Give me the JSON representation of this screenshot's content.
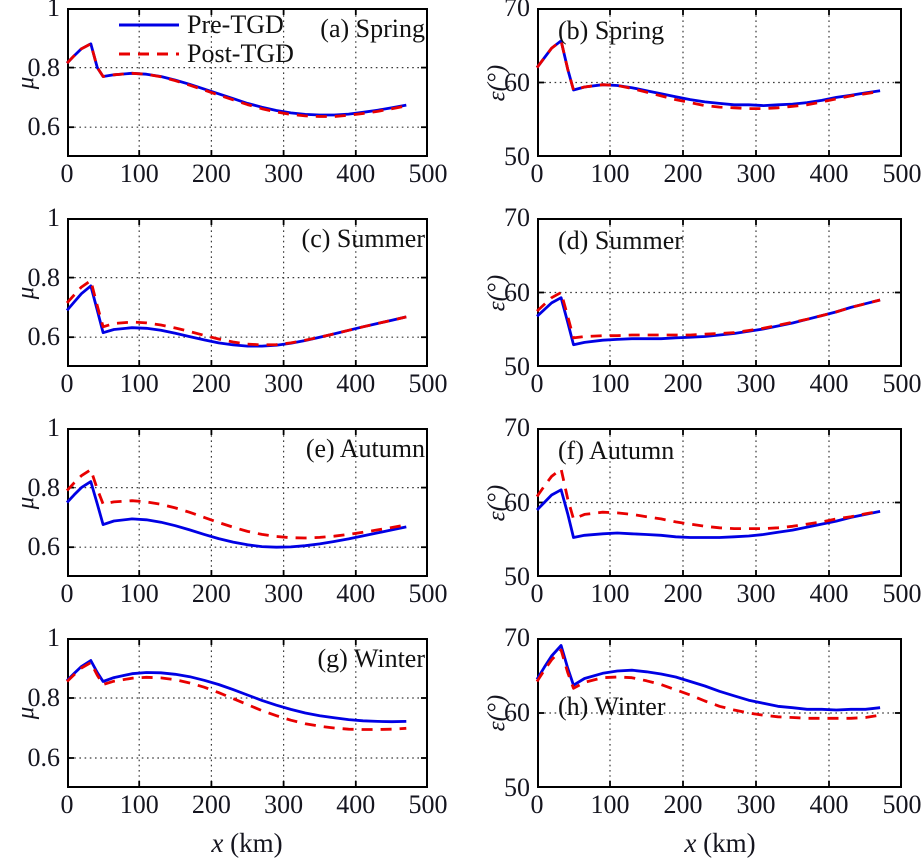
{
  "figure": {
    "xlabel_var": "x",
    "xlabel_rest": " (km)",
    "x_ticks": [
      0,
      100,
      200,
      300,
      400,
      500
    ],
    "xlim": [
      0,
      500
    ],
    "legend": [
      {
        "label": "Pre-TGD",
        "color": "#0000e4",
        "style": "solid"
      },
      {
        "label": "Post-TGD",
        "color": "#e80000",
        "style": "dashed"
      }
    ],
    "colors": {
      "pre_tgd": "#0000e4",
      "post_tgd": "#e80000",
      "axis": "#000000",
      "grid": "#3a3a3a",
      "text": "#15151f",
      "background": "#ffffff"
    }
  },
  "chart_data": [
    {
      "type": "line",
      "id": "a",
      "label": "(a) Spring",
      "label_pos": "top-right",
      "ylabel": "μ",
      "ylim": [
        0.5,
        1.0
      ],
      "yticks": [
        {
          "v": 1,
          "t": "1"
        },
        {
          "v": 0.8,
          "t": "0.8"
        },
        {
          "v": 0.6,
          "t": "0.6"
        }
      ],
      "x": [
        0,
        10,
        20,
        33,
        42,
        50,
        65,
        90,
        110,
        130,
        150,
        170,
        190,
        210,
        230,
        250,
        270,
        290,
        310,
        330,
        350,
        370,
        390,
        410,
        430,
        450,
        470
      ],
      "series": [
        {
          "name": "Pre-TGD",
          "y": [
            0.815,
            0.84,
            0.863,
            0.88,
            0.8,
            0.77,
            0.776,
            0.781,
            0.778,
            0.77,
            0.758,
            0.744,
            0.728,
            0.712,
            0.696,
            0.68,
            0.667,
            0.656,
            0.648,
            0.643,
            0.641,
            0.641,
            0.644,
            0.65,
            0.657,
            0.665,
            0.674
          ]
        },
        {
          "name": "Post-TGD",
          "y": [
            0.815,
            0.84,
            0.863,
            0.88,
            0.8,
            0.77,
            0.776,
            0.781,
            0.778,
            0.769,
            0.756,
            0.741,
            0.725,
            0.708,
            0.692,
            0.676,
            0.662,
            0.651,
            0.643,
            0.638,
            0.636,
            0.636,
            0.64,
            0.646,
            0.653,
            0.662,
            0.671
          ]
        }
      ]
    },
    {
      "type": "line",
      "id": "b",
      "label": "(b) Spring",
      "label_pos": "top-left",
      "ylabel": "ε(°)",
      "ylim": [
        50,
        70
      ],
      "yticks": [
        {
          "v": 70,
          "t": "70"
        },
        {
          "v": 60,
          "t": "60"
        },
        {
          "v": 50,
          "t": "50"
        }
      ],
      "x": [
        0,
        10,
        20,
        33,
        42,
        50,
        65,
        90,
        110,
        130,
        150,
        170,
        190,
        210,
        230,
        250,
        270,
        290,
        310,
        330,
        350,
        370,
        390,
        410,
        430,
        450,
        470
      ],
      "series": [
        {
          "name": "Pre-TGD",
          "y": [
            62.0,
            63.3,
            64.6,
            65.6,
            61.8,
            59.0,
            59.4,
            59.7,
            59.6,
            59.3,
            58.9,
            58.5,
            58.1,
            57.7,
            57.4,
            57.2,
            57.0,
            57.0,
            56.9,
            57.0,
            57.1,
            57.3,
            57.6,
            58.0,
            58.3,
            58.6,
            58.9
          ]
        },
        {
          "name": "Post-TGD",
          "y": [
            62.0,
            63.3,
            64.6,
            65.6,
            61.8,
            59.0,
            59.4,
            59.7,
            59.6,
            59.2,
            58.7,
            58.2,
            57.7,
            57.3,
            56.9,
            56.7,
            56.6,
            56.5,
            56.5,
            56.6,
            56.8,
            57.0,
            57.4,
            57.8,
            58.2,
            58.5,
            58.8
          ]
        }
      ]
    },
    {
      "type": "line",
      "id": "c",
      "label": "(c) Summer",
      "label_pos": "top-right",
      "ylabel": "μ",
      "ylim": [
        0.5,
        1.0
      ],
      "yticks": [
        {
          "v": 1,
          "t": "1"
        },
        {
          "v": 0.8,
          "t": "0.8"
        },
        {
          "v": 0.6,
          "t": "0.6"
        }
      ],
      "x": [
        0,
        10,
        20,
        33,
        42,
        50,
        65,
        90,
        110,
        130,
        150,
        170,
        190,
        210,
        230,
        250,
        270,
        290,
        310,
        330,
        350,
        370,
        390,
        410,
        430,
        450,
        470
      ],
      "series": [
        {
          "name": "Pre-TGD",
          "y": [
            0.69,
            0.718,
            0.746,
            0.772,
            0.69,
            0.615,
            0.626,
            0.632,
            0.63,
            0.623,
            0.613,
            0.602,
            0.591,
            0.581,
            0.574,
            0.57,
            0.57,
            0.573,
            0.58,
            0.589,
            0.6,
            0.611,
            0.623,
            0.635,
            0.646,
            0.657,
            0.668
          ]
        },
        {
          "name": "Post-TGD",
          "y": [
            0.715,
            0.742,
            0.768,
            0.79,
            0.705,
            0.635,
            0.646,
            0.651,
            0.648,
            0.641,
            0.631,
            0.619,
            0.606,
            0.594,
            0.584,
            0.577,
            0.574,
            0.575,
            0.581,
            0.59,
            0.6,
            0.611,
            0.623,
            0.635,
            0.646,
            0.657,
            0.668
          ]
        }
      ]
    },
    {
      "type": "line",
      "id": "d",
      "label": "(d) Summer",
      "label_pos": "top-left",
      "ylabel": "ε(°)",
      "ylim": [
        50,
        70
      ],
      "yticks": [
        {
          "v": 70,
          "t": "70"
        },
        {
          "v": 60,
          "t": "60"
        },
        {
          "v": 50,
          "t": "50"
        }
      ],
      "x": [
        0,
        10,
        20,
        33,
        42,
        50,
        65,
        90,
        110,
        130,
        150,
        170,
        190,
        210,
        230,
        250,
        270,
        290,
        310,
        330,
        350,
        370,
        390,
        410,
        430,
        450,
        470
      ],
      "series": [
        {
          "name": "Pre-TGD",
          "y": [
            56.8,
            57.7,
            58.6,
            59.3,
            56.0,
            53.0,
            53.3,
            53.6,
            53.7,
            53.8,
            53.8,
            53.8,
            53.9,
            54.0,
            54.1,
            54.3,
            54.5,
            54.8,
            55.1,
            55.5,
            55.9,
            56.4,
            56.9,
            57.4,
            58.0,
            58.5,
            59.0
          ]
        },
        {
          "name": "Post-TGD",
          "y": [
            57.5,
            58.4,
            59.3,
            60.0,
            56.8,
            53.9,
            54.1,
            54.2,
            54.2,
            54.3,
            54.3,
            54.3,
            54.3,
            54.3,
            54.4,
            54.5,
            54.6,
            54.9,
            55.2,
            55.6,
            56.0,
            56.4,
            56.9,
            57.4,
            58.0,
            58.5,
            59.0
          ]
        }
      ]
    },
    {
      "type": "line",
      "id": "e",
      "label": "(e) Autumn",
      "label_pos": "top-right",
      "ylabel": "μ",
      "ylim": [
        0.5,
        1.0
      ],
      "yticks": [
        {
          "v": 1,
          "t": "1"
        },
        {
          "v": 0.8,
          "t": "0.8"
        },
        {
          "v": 0.6,
          "t": "0.6"
        }
      ],
      "x": [
        0,
        10,
        20,
        33,
        42,
        50,
        65,
        90,
        110,
        130,
        150,
        170,
        190,
        210,
        230,
        250,
        270,
        290,
        310,
        330,
        350,
        370,
        390,
        410,
        430,
        450,
        470
      ],
      "series": [
        {
          "name": "Pre-TGD",
          "y": [
            0.75,
            0.776,
            0.8,
            0.82,
            0.745,
            0.676,
            0.688,
            0.695,
            0.692,
            0.684,
            0.672,
            0.658,
            0.643,
            0.629,
            0.617,
            0.608,
            0.602,
            0.6,
            0.601,
            0.605,
            0.611,
            0.619,
            0.628,
            0.638,
            0.648,
            0.658,
            0.668
          ]
        },
        {
          "name": "Post-TGD",
          "y": [
            0.79,
            0.816,
            0.84,
            0.86,
            0.795,
            0.745,
            0.752,
            0.756,
            0.752,
            0.744,
            0.732,
            0.717,
            0.7,
            0.683,
            0.667,
            0.653,
            0.643,
            0.636,
            0.632,
            0.631,
            0.633,
            0.637,
            0.643,
            0.65,
            0.658,
            0.666,
            0.675
          ]
        }
      ]
    },
    {
      "type": "line",
      "id": "f",
      "label": "(f) Autumn",
      "label_pos": "top-left",
      "ylabel": "ε(°)",
      "ylim": [
        50,
        70
      ],
      "yticks": [
        {
          "v": 70,
          "t": "70"
        },
        {
          "v": 60,
          "t": "60"
        },
        {
          "v": 50,
          "t": "50"
        }
      ],
      "x": [
        0,
        10,
        20,
        33,
        42,
        50,
        65,
        90,
        110,
        130,
        150,
        170,
        190,
        210,
        230,
        250,
        270,
        290,
        310,
        330,
        350,
        370,
        390,
        410,
        430,
        450,
        470
      ],
      "series": [
        {
          "name": "Pre-TGD",
          "y": [
            59.0,
            60.0,
            61.0,
            61.7,
            58.5,
            55.3,
            55.6,
            55.8,
            55.9,
            55.8,
            55.7,
            55.6,
            55.4,
            55.3,
            55.3,
            55.3,
            55.4,
            55.5,
            55.7,
            56.0,
            56.3,
            56.7,
            57.1,
            57.5,
            58.0,
            58.4,
            58.8
          ]
        },
        {
          "name": "Post-TGD",
          "y": [
            60.8,
            62.2,
            63.5,
            64.5,
            60.5,
            57.8,
            58.4,
            58.7,
            58.6,
            58.4,
            58.1,
            57.8,
            57.4,
            57.1,
            56.8,
            56.6,
            56.5,
            56.5,
            56.5,
            56.6,
            56.8,
            57.1,
            57.4,
            57.8,
            58.1,
            58.5,
            58.8
          ]
        }
      ]
    },
    {
      "type": "line",
      "id": "g",
      "label": "(g) Winter",
      "label_pos": "top-right",
      "ylabel": "μ",
      "ylim": [
        0.5,
        1.0
      ],
      "yticks": [
        {
          "v": 1,
          "t": "1"
        },
        {
          "v": 0.8,
          "t": "0.8"
        },
        {
          "v": 0.6,
          "t": "0.6"
        }
      ],
      "x": [
        0,
        10,
        20,
        33,
        42,
        50,
        65,
        90,
        110,
        130,
        150,
        170,
        190,
        210,
        230,
        250,
        270,
        290,
        310,
        330,
        350,
        370,
        390,
        410,
        430,
        450,
        470
      ],
      "series": [
        {
          "name": "Pre-TGD",
          "y": [
            0.858,
            0.882,
            0.905,
            0.925,
            0.885,
            0.855,
            0.868,
            0.881,
            0.885,
            0.884,
            0.879,
            0.871,
            0.859,
            0.845,
            0.828,
            0.81,
            0.792,
            0.776,
            0.762,
            0.75,
            0.741,
            0.734,
            0.728,
            0.724,
            0.722,
            0.721,
            0.722
          ]
        },
        {
          "name": "Post-TGD",
          "y": [
            0.855,
            0.878,
            0.9,
            0.918,
            0.876,
            0.845,
            0.856,
            0.866,
            0.869,
            0.867,
            0.861,
            0.85,
            0.836,
            0.818,
            0.798,
            0.778,
            0.758,
            0.741,
            0.726,
            0.714,
            0.706,
            0.7,
            0.696,
            0.695,
            0.695,
            0.696,
            0.699
          ]
        }
      ]
    },
    {
      "type": "line",
      "id": "h",
      "label": "(h) Winter",
      "label_pos": "mid-left",
      "ylabel": "ε(°)",
      "ylim": [
        50,
        70
      ],
      "yticks": [
        {
          "v": 70,
          "t": "70"
        },
        {
          "v": 60,
          "t": "60"
        },
        {
          "v": 50,
          "t": "50"
        }
      ],
      "x": [
        0,
        10,
        20,
        33,
        42,
        50,
        65,
        90,
        110,
        130,
        150,
        170,
        190,
        210,
        230,
        250,
        270,
        290,
        310,
        330,
        350,
        370,
        390,
        410,
        430,
        450,
        470
      ],
      "series": [
        {
          "name": "Pre-TGD",
          "y": [
            64.5,
            66.1,
            67.6,
            69.0,
            66.0,
            63.7,
            64.6,
            65.3,
            65.6,
            65.7,
            65.5,
            65.2,
            64.8,
            64.2,
            63.6,
            62.9,
            62.3,
            61.7,
            61.3,
            60.9,
            60.7,
            60.5,
            60.5,
            60.4,
            60.5,
            60.5,
            60.7
          ]
        },
        {
          "name": "Post-TGD",
          "y": [
            64.2,
            65.7,
            67.1,
            68.4,
            65.4,
            63.3,
            64.1,
            64.7,
            64.8,
            64.7,
            64.3,
            63.8,
            63.1,
            62.4,
            61.6,
            60.9,
            60.4,
            60.0,
            59.7,
            59.5,
            59.4,
            59.3,
            59.3,
            59.3,
            59.3,
            59.4,
            59.7
          ]
        }
      ]
    }
  ]
}
